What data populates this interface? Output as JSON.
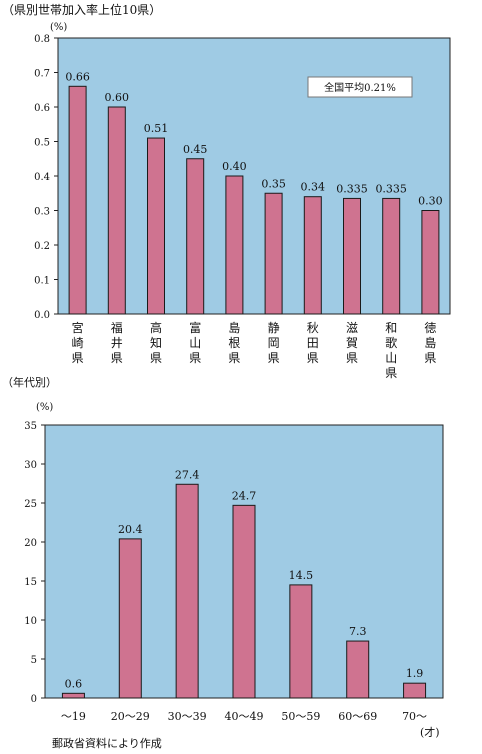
{
  "chart_data": [
    {
      "type": "bar",
      "title": "（県別世帯加入率上位10県）",
      "ylabel": "(%)",
      "categories": [
        "宮崎県",
        "福井県",
        "高知県",
        "富山県",
        "島根県",
        "静岡県",
        "秋田県",
        "滋賀県",
        "和歌山県",
        "徳島県"
      ],
      "values": [
        0.66,
        0.6,
        0.51,
        0.45,
        0.4,
        0.35,
        0.34,
        0.335,
        0.335,
        0.3
      ],
      "value_labels": [
        "0.66",
        "0.60",
        "0.51",
        "0.45",
        "0.40",
        "0.35",
        "0.34",
        "0.335",
        "0.335",
        "0.30"
      ],
      "ylim": [
        0,
        0.8
      ],
      "yticks": [
        "0.0",
        "0.1",
        "0.2",
        "0.3",
        "0.4",
        "0.5",
        "0.6",
        "0.7",
        "0.8"
      ],
      "annotation": "全国平均0.21%",
      "grid": false,
      "colors": {
        "plot_bg": "#9fcbe4",
        "bar": "#cf7390",
        "bar_edge": "#1a1a1a"
      }
    },
    {
      "type": "bar",
      "title": "（年代別）",
      "ylabel": "(%)",
      "xlabel_unit": "(才)",
      "categories": [
        "～19",
        "20～29",
        "30～39",
        "40～49",
        "50～59",
        "60～69",
        "70～"
      ],
      "values": [
        0.6,
        20.4,
        27.4,
        24.7,
        14.5,
        7.3,
        1.9
      ],
      "value_labels": [
        "0.6",
        "20.4",
        "27.4",
        "24.7",
        "14.5",
        "7.3",
        "1.9"
      ],
      "ylim": [
        0,
        35
      ],
      "yticks": [
        "0",
        "5",
        "10",
        "15",
        "20",
        "25",
        "30",
        "35"
      ],
      "grid": false,
      "colors": {
        "plot_bg": "#9fcbe4",
        "bar": "#cf7390",
        "bar_edge": "#1a1a1a"
      }
    }
  ],
  "source_note": "郵政省資料により作成"
}
